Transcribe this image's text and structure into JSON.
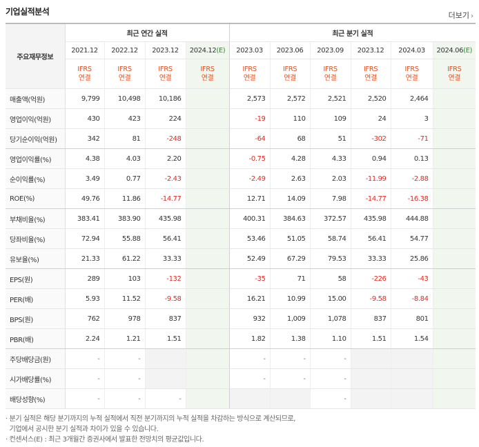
{
  "title": "기업실적분석",
  "more": "더보기",
  "header": {
    "row_label": "주요재무정보",
    "annual_group": "최근 연간 실적",
    "quarter_group": "최근 분기 실적",
    "annual_periods": [
      "2021.12",
      "2022.12",
      "2023.12"
    ],
    "annual_estimate": "2024.12",
    "quarter_periods": [
      "2023.03",
      "2023.06",
      "2023.09",
      "2023.12",
      "2024.03"
    ],
    "quarter_estimate": "2024.06",
    "estimate_mark": "(E)",
    "basis_top": "IFRS",
    "basis_bottom": "연결"
  },
  "rows": [
    {
      "label": "매출액(억원)",
      "annual": [
        "9,799",
        "10,498",
        "10,186"
      ],
      "annual_est": "",
      "quarter": [
        "2,573",
        "2,572",
        "2,521",
        "2,520",
        "2,464"
      ],
      "quarter_est": ""
    },
    {
      "label": "영업이익(억원)",
      "annual": [
        "430",
        "423",
        "224"
      ],
      "annual_est": "",
      "quarter": [
        "-19",
        "110",
        "109",
        "24",
        "3"
      ],
      "quarter_est": ""
    },
    {
      "label": "당기순이익(억원)",
      "annual": [
        "342",
        "81",
        "-248"
      ],
      "annual_est": "",
      "quarter": [
        "-64",
        "68",
        "51",
        "-302",
        "-71"
      ],
      "quarter_est": ""
    },
    {
      "label": "영업이익률(%)",
      "annual": [
        "4.38",
        "4.03",
        "2.20"
      ],
      "annual_est": "",
      "quarter": [
        "-0.75",
        "4.28",
        "4.33",
        "0.94",
        "0.13"
      ],
      "quarter_est": ""
    },
    {
      "label": "순이익률(%)",
      "annual": [
        "3.49",
        "0.77",
        "-2.43"
      ],
      "annual_est": "",
      "quarter": [
        "-2.49",
        "2.63",
        "2.03",
        "-11.99",
        "-2.88"
      ],
      "quarter_est": ""
    },
    {
      "label": "ROE(%)",
      "annual": [
        "49.76",
        "11.86",
        "-14.77"
      ],
      "annual_est": "",
      "quarter": [
        "12.71",
        "14.09",
        "7.98",
        "-14.77",
        "-16.38"
      ],
      "quarter_est": ""
    },
    {
      "label": "부채비율(%)",
      "annual": [
        "383.41",
        "383.90",
        "435.98"
      ],
      "annual_est": "",
      "quarter": [
        "400.31",
        "384.63",
        "372.57",
        "435.98",
        "444.88"
      ],
      "quarter_est": ""
    },
    {
      "label": "당좌비율(%)",
      "annual": [
        "72.94",
        "55.88",
        "56.41"
      ],
      "annual_est": "",
      "quarter": [
        "53.46",
        "51.05",
        "58.74",
        "56.41",
        "54.77"
      ],
      "quarter_est": ""
    },
    {
      "label": "유보율(%)",
      "annual": [
        "21.33",
        "61.22",
        "33.33"
      ],
      "annual_est": "",
      "quarter": [
        "52.49",
        "67.29",
        "79.53",
        "33.33",
        "25.86"
      ],
      "quarter_est": ""
    },
    {
      "label": "EPS(원)",
      "annual": [
        "289",
        "103",
        "-132"
      ],
      "annual_est": "",
      "quarter": [
        "-35",
        "71",
        "58",
        "-226",
        "-43"
      ],
      "quarter_est": ""
    },
    {
      "label": "PER(배)",
      "annual": [
        "5.93",
        "11.52",
        "-9.58"
      ],
      "annual_est": "",
      "quarter": [
        "16.21",
        "10.99",
        "15.00",
        "-9.58",
        "-8.84"
      ],
      "quarter_est": ""
    },
    {
      "label": "BPS(원)",
      "annual": [
        "762",
        "978",
        "837"
      ],
      "annual_est": "",
      "quarter": [
        "932",
        "1,009",
        "1,078",
        "837",
        "801"
      ],
      "quarter_est": ""
    },
    {
      "label": "PBR(배)",
      "annual": [
        "2.24",
        "1.21",
        "1.51"
      ],
      "annual_est": "",
      "quarter": [
        "1.82",
        "1.38",
        "1.10",
        "1.51",
        "1.54"
      ],
      "quarter_est": ""
    },
    {
      "label": "주당배당금(원)",
      "annual": [
        "-",
        "-",
        ""
      ],
      "annual_est": "",
      "quarter": [
        "-",
        "-",
        "-",
        "",
        ""
      ],
      "quarter_est": ""
    },
    {
      "label": "시가배당률(%)",
      "annual": [
        "-",
        "-",
        ""
      ],
      "annual_est": "",
      "quarter": [
        "-",
        "-",
        "-",
        "",
        ""
      ],
      "quarter_est": ""
    },
    {
      "label": "배당성향(%)",
      "annual": [
        "-",
        "-",
        "-"
      ],
      "annual_est": "",
      "quarter": [
        "",
        "",
        "-",
        "",
        ""
      ],
      "quarter_est": ""
    }
  ],
  "block_ends": [
    2,
    5,
    8,
    12
  ],
  "notes": [
    "· 분기 실적은 해당 분기까지의 누적 실적에서 직전 분기까지의 누적 실적을 차감하는 방식으로 계산되므로,",
    "  기업에서 공시한 분기 실적과 차이가 있을 수 있습니다.",
    "· 컨센서스(E) : 최근 3개월간 증권사에서 발표한 전망치의 평균값입니다."
  ],
  "colors": {
    "negative": "#e8251d",
    "basis": "#e8501d",
    "estimate_mark": "#2e8b33",
    "estimate_bg": "#f1f7ee"
  }
}
